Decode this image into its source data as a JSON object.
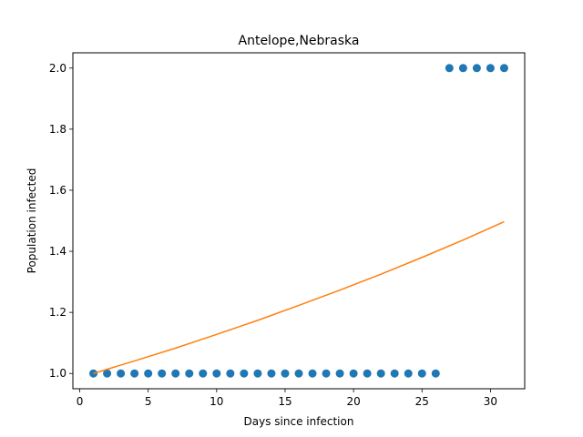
{
  "chart_data": {
    "type": "scatter",
    "title": "Antelope,Nebraska",
    "xlabel": "Days since infection",
    "ylabel": "Population infected",
    "xlim": [
      -0.5,
      32.5
    ],
    "ylim": [
      0.95,
      2.05
    ],
    "xticks": [
      {
        "value": 0,
        "label": "0"
      },
      {
        "value": 5,
        "label": "5"
      },
      {
        "value": 10,
        "label": "10"
      },
      {
        "value": 15,
        "label": "15"
      },
      {
        "value": 20,
        "label": "20"
      },
      {
        "value": 25,
        "label": "25"
      },
      {
        "value": 30,
        "label": "30"
      }
    ],
    "yticks": [
      {
        "value": 1.0,
        "label": "1.0"
      },
      {
        "value": 1.2,
        "label": "1.2"
      },
      {
        "value": 1.4,
        "label": "1.4"
      },
      {
        "value": 1.6,
        "label": "1.6"
      },
      {
        "value": 1.8,
        "label": "1.8"
      },
      {
        "value": 2.0,
        "label": "2.0"
      }
    ],
    "grid": false,
    "series": [
      {
        "kind": "scatter",
        "color": "#1f77b4",
        "x": [
          1,
          2,
          3,
          4,
          5,
          6,
          7,
          8,
          9,
          10,
          11,
          12,
          13,
          14,
          15,
          16,
          17,
          18,
          19,
          20,
          21,
          22,
          23,
          24,
          25,
          26,
          27,
          28,
          29,
          30,
          31
        ],
        "y": [
          1,
          1,
          1,
          1,
          1,
          1,
          1,
          1,
          1,
          1,
          1,
          1,
          1,
          1,
          1,
          1,
          1,
          1,
          1,
          1,
          1,
          1,
          1,
          1,
          1,
          1,
          2,
          2,
          2,
          2,
          2
        ]
      },
      {
        "kind": "line",
        "color": "#ff7f0e",
        "x": [
          1,
          4,
          7,
          10,
          13,
          16,
          19,
          22,
          25,
          28,
          31
        ],
        "y": [
          1.0,
          1.041,
          1.083,
          1.128,
          1.174,
          1.223,
          1.273,
          1.325,
          1.38,
          1.437,
          1.497
        ]
      }
    ]
  }
}
